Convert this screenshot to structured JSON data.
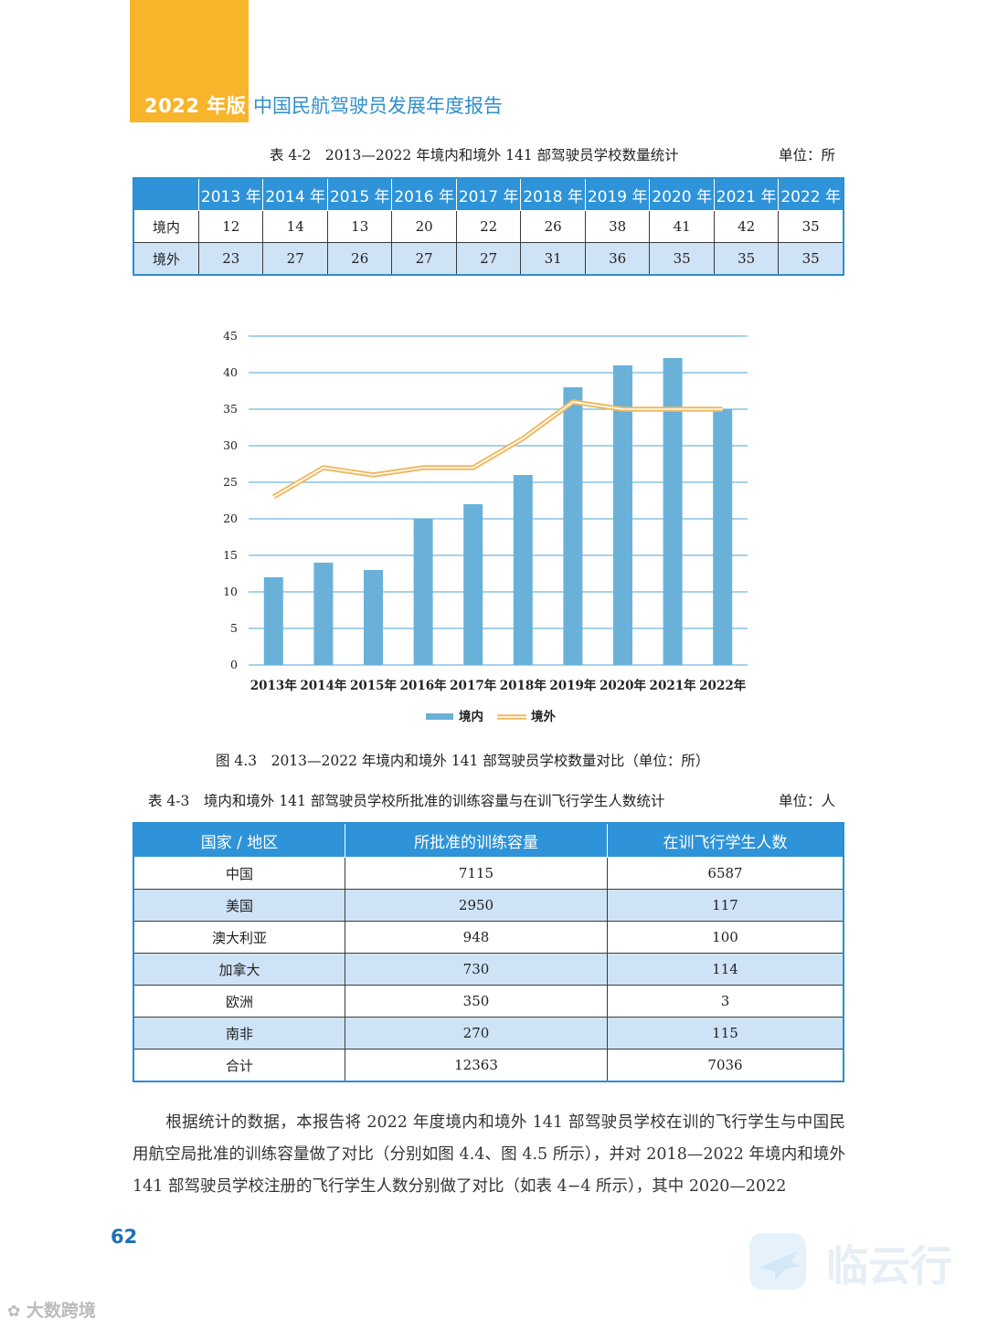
{
  "header": {
    "year_badge": "2022 年版",
    "report_title": "中国民航驾驶员发展年度报告"
  },
  "table42": {
    "caption": "表 4-2　2013—2022 年境内和境外 141 部驾驶员学校数量统计",
    "unit": "单位：所",
    "years": [
      "2013 年",
      "2014 年",
      "2015 年",
      "2016 年",
      "2017 年",
      "2018 年",
      "2019 年",
      "2020 年",
      "2021 年",
      "2022 年"
    ],
    "rows": [
      {
        "label": "境内",
        "values": [
          "12",
          "14",
          "13",
          "20",
          "22",
          "26",
          "38",
          "41",
          "42",
          "35"
        ]
      },
      {
        "label": "境外",
        "values": [
          "23",
          "27",
          "26",
          "27",
          "27",
          "31",
          "36",
          "35",
          "35",
          "35"
        ]
      }
    ]
  },
  "chart_data": {
    "type": "bar",
    "categories": [
      "2013年",
      "2014年",
      "2015年",
      "2016年",
      "2017年",
      "2018年",
      "2019年",
      "2020年",
      "2021年",
      "2022年"
    ],
    "series": [
      {
        "name": "境内",
        "type": "bar",
        "values": [
          12,
          14,
          13,
          20,
          22,
          26,
          38,
          41,
          42,
          35
        ],
        "color": "#69b1d8"
      },
      {
        "name": "境外",
        "type": "line",
        "values": [
          23,
          27,
          26,
          27,
          27,
          31,
          36,
          35,
          35,
          35
        ],
        "color": "#f0b961"
      }
    ],
    "yticks": [
      "0",
      "5",
      "10",
      "15",
      "20",
      "25",
      "30",
      "35",
      "40",
      "45"
    ],
    "ylim": [
      0,
      45
    ],
    "grid": true,
    "legend": "bottom",
    "caption": "图 4.3　2013—2022 年境内和境外 141 部驾驶员学校数量对比（单位：所）"
  },
  "table43": {
    "caption": "表 4-3　境内和境外 141 部驾驶员学校所批准的训练容量与在训飞行学生人数统计",
    "unit": "单位：人",
    "headers": [
      "国家 / 地区",
      "所批准的训练容量",
      "在训飞行学生人数"
    ],
    "rows": [
      [
        "中国",
        "7115",
        "6587"
      ],
      [
        "美国",
        "2950",
        "117"
      ],
      [
        "澳大利亚",
        "948",
        "100"
      ],
      [
        "加拿大",
        "730",
        "114"
      ],
      [
        "欧洲",
        "350",
        "3"
      ],
      [
        "南非",
        "270",
        "115"
      ],
      [
        "合计",
        "12363",
        "7036"
      ]
    ]
  },
  "paragraph": "根据统计的数据，本报告将 2022 年度境内和境外 141 部驾驶员学校在训的飞行学生与中国民用航空局批准的训练容量做了对比（分别如图 4.4、图 4.5 所示），并对 2018—2022 年境内和境外 141 部驾驶员学校注册的飞行学生人数分别做了对比（如表 4−4 所示），其中 2020—2022",
  "page_number": "62",
  "watermarks": {
    "left": "大数跨境",
    "right": "临云行"
  },
  "colors": {
    "accent_blue": "#2e93d8",
    "row_blue": "#cfe3f7",
    "header_orange": "#f7b52c"
  }
}
